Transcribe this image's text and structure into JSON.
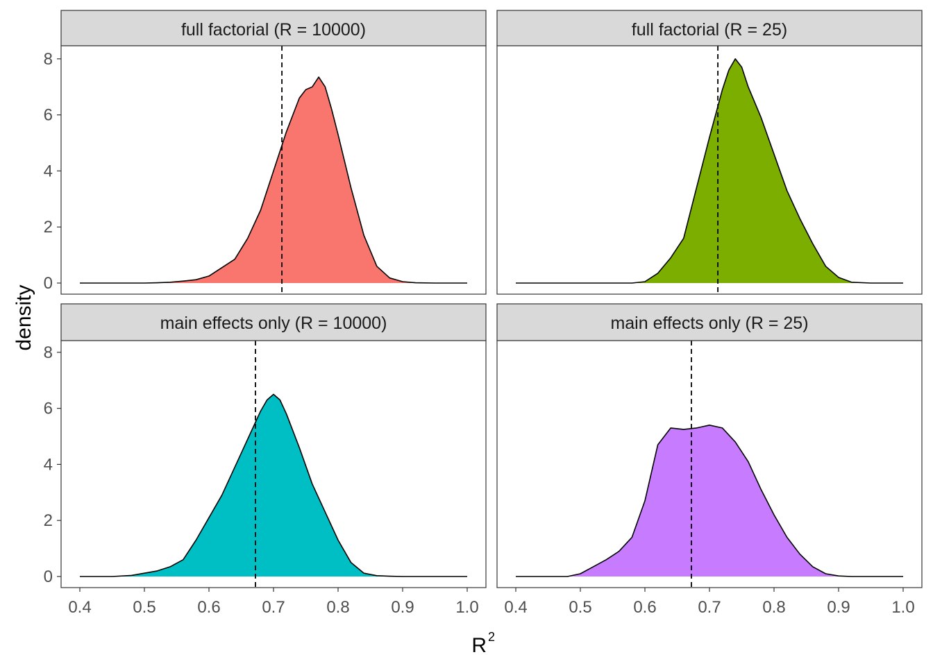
{
  "chart_data": {
    "type": "area",
    "xlabel": "R",
    "xlabel_superscript": "2",
    "ylabel": "density",
    "xlim": [
      0.4,
      1.0
    ],
    "ylim": [
      0,
      8
    ],
    "x_ticks": [
      "0.4",
      "0.5",
      "0.6",
      "0.7",
      "0.8",
      "0.9",
      "1.0"
    ],
    "y_ticks": [
      "0",
      "2",
      "4",
      "6",
      "8"
    ],
    "grid": false,
    "legend": "none",
    "panels": [
      {
        "title": "full factorial (R = 10000)",
        "color": "#F8766D",
        "reference_line": 0.713,
        "x": [
          0.4,
          0.45,
          0.5,
          0.52,
          0.54,
          0.56,
          0.58,
          0.6,
          0.62,
          0.64,
          0.66,
          0.68,
          0.7,
          0.72,
          0.74,
          0.75,
          0.76,
          0.77,
          0.78,
          0.79,
          0.8,
          0.82,
          0.84,
          0.86,
          0.88,
          0.9,
          0.92,
          0.95,
          1.0
        ],
        "y": [
          0.0,
          0.0,
          0.0,
          0.01,
          0.03,
          0.07,
          0.12,
          0.25,
          0.55,
          0.85,
          1.6,
          2.6,
          4.0,
          5.4,
          6.6,
          6.9,
          7.0,
          7.35,
          7.0,
          6.2,
          5.3,
          3.4,
          1.7,
          0.6,
          0.18,
          0.05,
          0.01,
          0.0,
          0.0
        ]
      },
      {
        "title": "full factorial (R = 25)",
        "color": "#7CAE00",
        "reference_line": 0.713,
        "x": [
          0.4,
          0.5,
          0.58,
          0.6,
          0.62,
          0.64,
          0.66,
          0.68,
          0.7,
          0.72,
          0.73,
          0.74,
          0.75,
          0.76,
          0.78,
          0.8,
          0.82,
          0.84,
          0.86,
          0.88,
          0.9,
          0.92,
          0.95,
          1.0
        ],
        "y": [
          0.0,
          0.0,
          0.0,
          0.05,
          0.35,
          0.9,
          1.6,
          3.4,
          5.2,
          6.9,
          7.6,
          8.0,
          7.7,
          7.0,
          5.9,
          4.6,
          3.3,
          2.3,
          1.4,
          0.6,
          0.2,
          0.03,
          0.0,
          0.0
        ]
      },
      {
        "title": "main effects only (R = 10000)",
        "color": "#00BFC4",
        "reference_line": 0.672,
        "x": [
          0.4,
          0.45,
          0.48,
          0.5,
          0.52,
          0.54,
          0.56,
          0.58,
          0.6,
          0.62,
          0.64,
          0.66,
          0.68,
          0.69,
          0.7,
          0.71,
          0.72,
          0.74,
          0.76,
          0.78,
          0.8,
          0.82,
          0.84,
          0.86,
          0.88,
          0.9,
          1.0
        ],
        "y": [
          0.0,
          0.0,
          0.04,
          0.12,
          0.2,
          0.35,
          0.6,
          1.3,
          2.1,
          2.9,
          3.9,
          4.9,
          5.9,
          6.3,
          6.5,
          6.3,
          5.8,
          4.6,
          3.3,
          2.3,
          1.3,
          0.5,
          0.12,
          0.03,
          0.01,
          0.0,
          0.0
        ]
      },
      {
        "title": "main effects only (R = 25)",
        "color": "#C77CFF",
        "reference_line": 0.672,
        "x": [
          0.4,
          0.48,
          0.5,
          0.52,
          0.54,
          0.56,
          0.58,
          0.6,
          0.62,
          0.64,
          0.66,
          0.68,
          0.7,
          0.72,
          0.74,
          0.76,
          0.78,
          0.8,
          0.82,
          0.84,
          0.86,
          0.88,
          0.9,
          0.92,
          1.0
        ],
        "y": [
          0.0,
          0.0,
          0.1,
          0.35,
          0.6,
          0.9,
          1.4,
          2.7,
          4.7,
          5.3,
          5.25,
          5.3,
          5.4,
          5.3,
          4.8,
          4.1,
          3.1,
          2.2,
          1.4,
          0.8,
          0.35,
          0.1,
          0.02,
          0.0,
          0.0
        ]
      }
    ]
  }
}
